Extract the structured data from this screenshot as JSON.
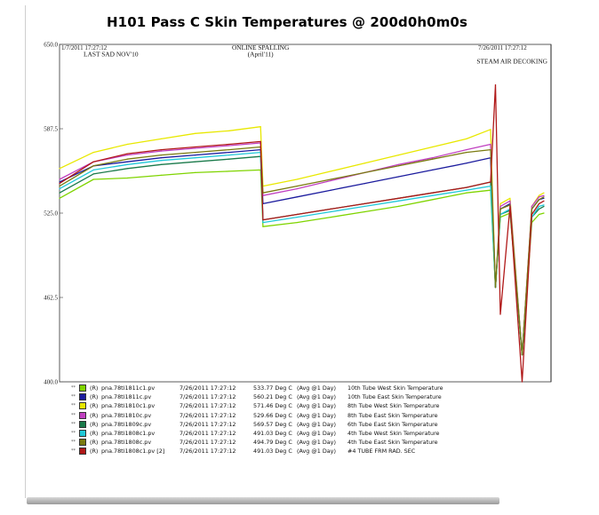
{
  "title": "H101 Pass C Skin Temperatures  @ 200d0h0m0s",
  "chart_data": {
    "type": "line",
    "title": "H101 Pass C Skin Temperatures  @ 200d0h0m0s",
    "start_time_label": "1/7/2011  17:27:12",
    "end_time_label": "7/26/2011  17:27:12",
    "y_ticks": [
      "650.0",
      "587.5",
      "525.0",
      "462.5",
      "400.0"
    ],
    "ylim": [
      400,
      650
    ],
    "x": [
      "1/7/2011",
      "1/21/2011",
      "2/4/2011",
      "2/18/2011",
      "3/4/2011",
      "3/18/2011",
      "3/31/2011",
      "4/1/2011",
      "4/15/2011",
      "4/29/2011",
      "5/13/2011",
      "5/27/2011",
      "6/10/2011",
      "6/24/2011",
      "7/4/2011",
      "7/6/2011",
      "7/8/2011",
      "7/12/2011",
      "7/17/2011",
      "7/21/2011",
      "7/24/2011",
      "7/26/2011"
    ],
    "annotations": [
      {
        "text": "LAST SAD NOV'10",
        "x": "1/7/2011",
        "y": 641
      },
      {
        "text": "ONLINE SPALLING",
        "x": "3/31/2011",
        "y": 646
      },
      {
        "text": "(April'11)",
        "x": "3/31/2011",
        "y": 641
      },
      {
        "text": "STEAM AIR DECOKING",
        "x": "7/21/2011",
        "y": 636
      }
    ],
    "series": [
      {
        "name": "10th Tube West Skin Temperature",
        "color": "#7fd400",
        "values": [
          536,
          550,
          551,
          553,
          555,
          556,
          557,
          515,
          518,
          522,
          526,
          530,
          535,
          540,
          542,
          470,
          522,
          525,
          420,
          518,
          524,
          525
        ]
      },
      {
        "name": "10th Tube East Skin Temperature",
        "color": "#1c1c9e",
        "values": [
          548,
          560,
          563,
          566,
          568,
          570,
          572,
          532,
          537,
          542,
          547,
          552,
          557,
          562,
          566,
          470,
          528,
          532,
          420,
          528,
          535,
          536
        ]
      },
      {
        "name": "8th Tube West Skin Temperature",
        "color": "#e8e800",
        "values": [
          558,
          570,
          576,
          580,
          584,
          586,
          589,
          545,
          550,
          556,
          562,
          568,
          574,
          580,
          587,
          470,
          532,
          536,
          420,
          530,
          538,
          540
        ]
      },
      {
        "name": "8th Tube East Skin Temperature",
        "color": "#c040c0",
        "values": [
          550,
          563,
          568,
          571,
          573,
          575,
          577,
          538,
          543,
          549,
          555,
          561,
          566,
          572,
          576,
          470,
          530,
          534,
          420,
          530,
          537,
          538
        ]
      },
      {
        "name": "6th Tube East Skin Temperature",
        "color": "#1a7a4a",
        "values": [
          540,
          554,
          558,
          561,
          563,
          565,
          567,
          520,
          524,
          528,
          532,
          536,
          540,
          544,
          548,
          470,
          524,
          527,
          420,
          522,
          528,
          530
        ]
      },
      {
        "name": "4th Tube West Skin Temperature",
        "color": "#20c8d8",
        "values": [
          543,
          557,
          561,
          564,
          566,
          568,
          570,
          518,
          522,
          526,
          530,
          534,
          538,
          542,
          545,
          470,
          524,
          528,
          420,
          522,
          530,
          531
        ]
      },
      {
        "name": "4th Tube East Skin Temperature",
        "color": "#7a7a10",
        "values": [
          545,
          560,
          565,
          568,
          570,
          572,
          574,
          540,
          545,
          550,
          555,
          560,
          565,
          570,
          572,
          470,
          528,
          531,
          420,
          528,
          535,
          537
        ]
      },
      {
        "name": "#4 TUBE FRM RAD. SEC",
        "color": "#b01818",
        "values": [
          547,
          563,
          569,
          572,
          574,
          576,
          578,
          520,
          524,
          528,
          532,
          536,
          540,
          544,
          548,
          620,
          450,
          530,
          400,
          524,
          532,
          534
        ]
      }
    ]
  },
  "legend": [
    {
      "mark": "**",
      "color": "#7fd400",
      "tag": "(R)",
      "name": "pna.78ti1811c1.pv",
      "time": "7/26/2011 17:27:12",
      "value": "533.77 Deg C",
      "avg": "(Avg @1 Day)",
      "desc": "10th Tube West Skin Temperature"
    },
    {
      "mark": "**",
      "color": "#1c1c9e",
      "tag": "(R)",
      "name": "pna.78ti1811c.pv",
      "time": "7/26/2011 17:27:12",
      "value": "560.21 Deg C",
      "avg": "(Avg @1 Day)",
      "desc": "10th Tube East Skin Temperature"
    },
    {
      "mark": "**",
      "color": "#e8e800",
      "tag": "(R)",
      "name": "pna.78ti1810c1.pv",
      "time": "7/26/2011 17:27:12",
      "value": "571.46 Deg C",
      "avg": "(Avg @1 Day)",
      "desc": "8th Tube West Skin Temperature"
    },
    {
      "mark": "**",
      "color": "#c040c0",
      "tag": "(R)",
      "name": "pna.78ti1810c.pv",
      "time": "7/26/2011 17:27:12",
      "value": "529.66 Deg C",
      "avg": "(Avg @1 Day)",
      "desc": "8th Tube East Skin Temperature"
    },
    {
      "mark": "**",
      "color": "#1a7a4a",
      "tag": "(R)",
      "name": "pna.78ti1809c.pv",
      "time": "7/26/2011 17:27:12",
      "value": "569.57 Deg C",
      "avg": "(Avg @1 Day)",
      "desc": "6th Tube East Skin Temperature"
    },
    {
      "mark": "**",
      "color": "#20c8d8",
      "tag": "(R)",
      "name": "pna.78ti1808c1.pv",
      "time": "7/26/2011 17:27:12",
      "value": "491.03 Deg C",
      "avg": "(Avg @1 Day)",
      "desc": "4th Tube West Skin Temperature"
    },
    {
      "mark": "**",
      "color": "#7a7a10",
      "tag": "(R)",
      "name": "pna.78ti1808c.pv",
      "time": "7/26/2011 17:27:12",
      "value": "494.79 Deg C",
      "avg": "(Avg @1 Day)",
      "desc": "4th Tube East Skin Temperature"
    },
    {
      "mark": "**",
      "color": "#b01818",
      "tag": "(R)",
      "name": "pna.78ti1808c1.pv [2]",
      "time": "7/26/2011 17:27:12",
      "value": "491.03 Deg C",
      "avg": "(Avg @1 Day)",
      "desc": "#4 TUBE FRM RAD. SEC"
    }
  ]
}
